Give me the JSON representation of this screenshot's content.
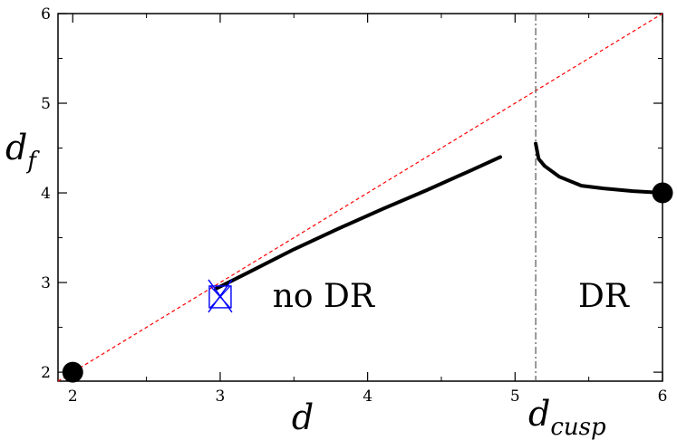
{
  "chart_data": {
    "type": "line",
    "xlabel": "d",
    "ylabel_main": "d",
    "ylabel_sub": "f",
    "xlim": [
      1.9,
      6.0
    ],
    "ylim": [
      1.9,
      6.0
    ],
    "x_ticks": [
      "2",
      "3",
      "4",
      "5",
      "6"
    ],
    "y_ticks": [
      "2",
      "3",
      "4",
      "5",
      "6"
    ],
    "grid": false,
    "reference_line": {
      "x": [
        1.9,
        6.0
      ],
      "y": [
        1.9,
        6.0
      ],
      "color": "#ff0000",
      "style": "dashed"
    },
    "series": [
      {
        "x": [
          2.97,
          3.2,
          3.5,
          3.8,
          4.1,
          4.4,
          4.7,
          4.9
        ],
        "y": [
          2.93,
          3.12,
          3.37,
          3.6,
          3.82,
          4.03,
          4.25,
          4.4
        ],
        "color": "#000000"
      },
      {
        "x": [
          5.14,
          5.16,
          5.2,
          5.3,
          5.45,
          5.6,
          5.8,
          6.0
        ],
        "y": [
          4.55,
          4.38,
          4.3,
          4.18,
          4.08,
          4.05,
          4.02,
          4.0
        ],
        "color": "#000000"
      }
    ],
    "points": [
      {
        "x": 2.0,
        "y": 2.0,
        "marker": "filled-circle"
      },
      {
        "x": 6.0,
        "y": 4.0,
        "marker": "filled-circle"
      }
    ],
    "markers": [
      {
        "x": 3.0,
        "y": 2.84,
        "color": "#0000ff",
        "marker": "square-cross"
      }
    ],
    "vline": {
      "x": 5.14,
      "label_main": "d",
      "label_sub": "cusp",
      "color": "#555555",
      "style": "dash-dot"
    },
    "annotations": [
      {
        "text": "no DR",
        "x": 3.7,
        "y": 2.73
      },
      {
        "text": "DR",
        "x": 5.6,
        "y": 2.73
      }
    ]
  }
}
